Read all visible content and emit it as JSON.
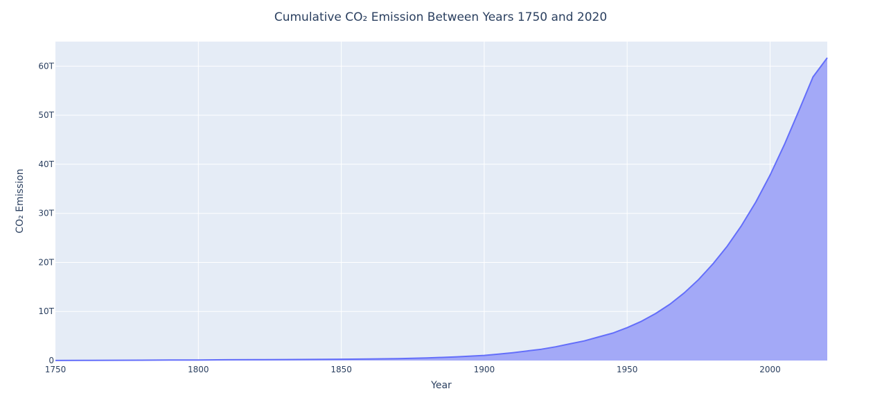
{
  "chart_data": {
    "type": "area",
    "title": "Cumulative  CO₂ Emission Between Years 1750 and 2020",
    "xlabel": "Year",
    "ylabel": "CO₂ Emission",
    "xlim": [
      1750,
      2020
    ],
    "ylim": [
      0,
      65
    ],
    "y_unit_note": "values in trillions (T)",
    "x_ticks": [
      1750,
      1800,
      1850,
      1900,
      1950,
      2000
    ],
    "x_tick_labels": [
      "1750",
      "1800",
      "1850",
      "1900",
      "1950",
      "2000"
    ],
    "y_ticks": [
      0,
      10,
      20,
      30,
      40,
      50,
      60
    ],
    "y_tick_labels": [
      "0",
      "10T",
      "20T",
      "30T",
      "40T",
      "50T",
      "60T"
    ],
    "grid": true,
    "colors": {
      "line": "#636efa",
      "fill": "#a3a9f7",
      "plot_bg": "#e5ecf6",
      "grid": "#ffffff",
      "text": "#2a3f5f"
    },
    "series": [
      {
        "name": "Cumulative CO₂ Emission",
        "x": [
          1750,
          1760,
          1770,
          1780,
          1790,
          1800,
          1810,
          1820,
          1830,
          1840,
          1850,
          1860,
          1870,
          1880,
          1890,
          1900,
          1905,
          1910,
          1915,
          1920,
          1925,
          1930,
          1935,
          1940,
          1945,
          1950,
          1955,
          1960,
          1965,
          1970,
          1975,
          1980,
          1985,
          1990,
          1995,
          2000,
          2005,
          2010,
          2015,
          2020
        ],
        "values": [
          0.01,
          0.03,
          0.05,
          0.07,
          0.1,
          0.12,
          0.15,
          0.17,
          0.2,
          0.23,
          0.27,
          0.32,
          0.4,
          0.52,
          0.75,
          1.05,
          1.3,
          1.6,
          1.95,
          2.3,
          2.8,
          3.4,
          4.0,
          4.8,
          5.6,
          6.7,
          8.0,
          9.6,
          11.5,
          13.8,
          16.5,
          19.7,
          23.3,
          27.5,
          32.3,
          37.8,
          44.0,
          50.8,
          57.8,
          61.7
        ]
      }
    ]
  }
}
